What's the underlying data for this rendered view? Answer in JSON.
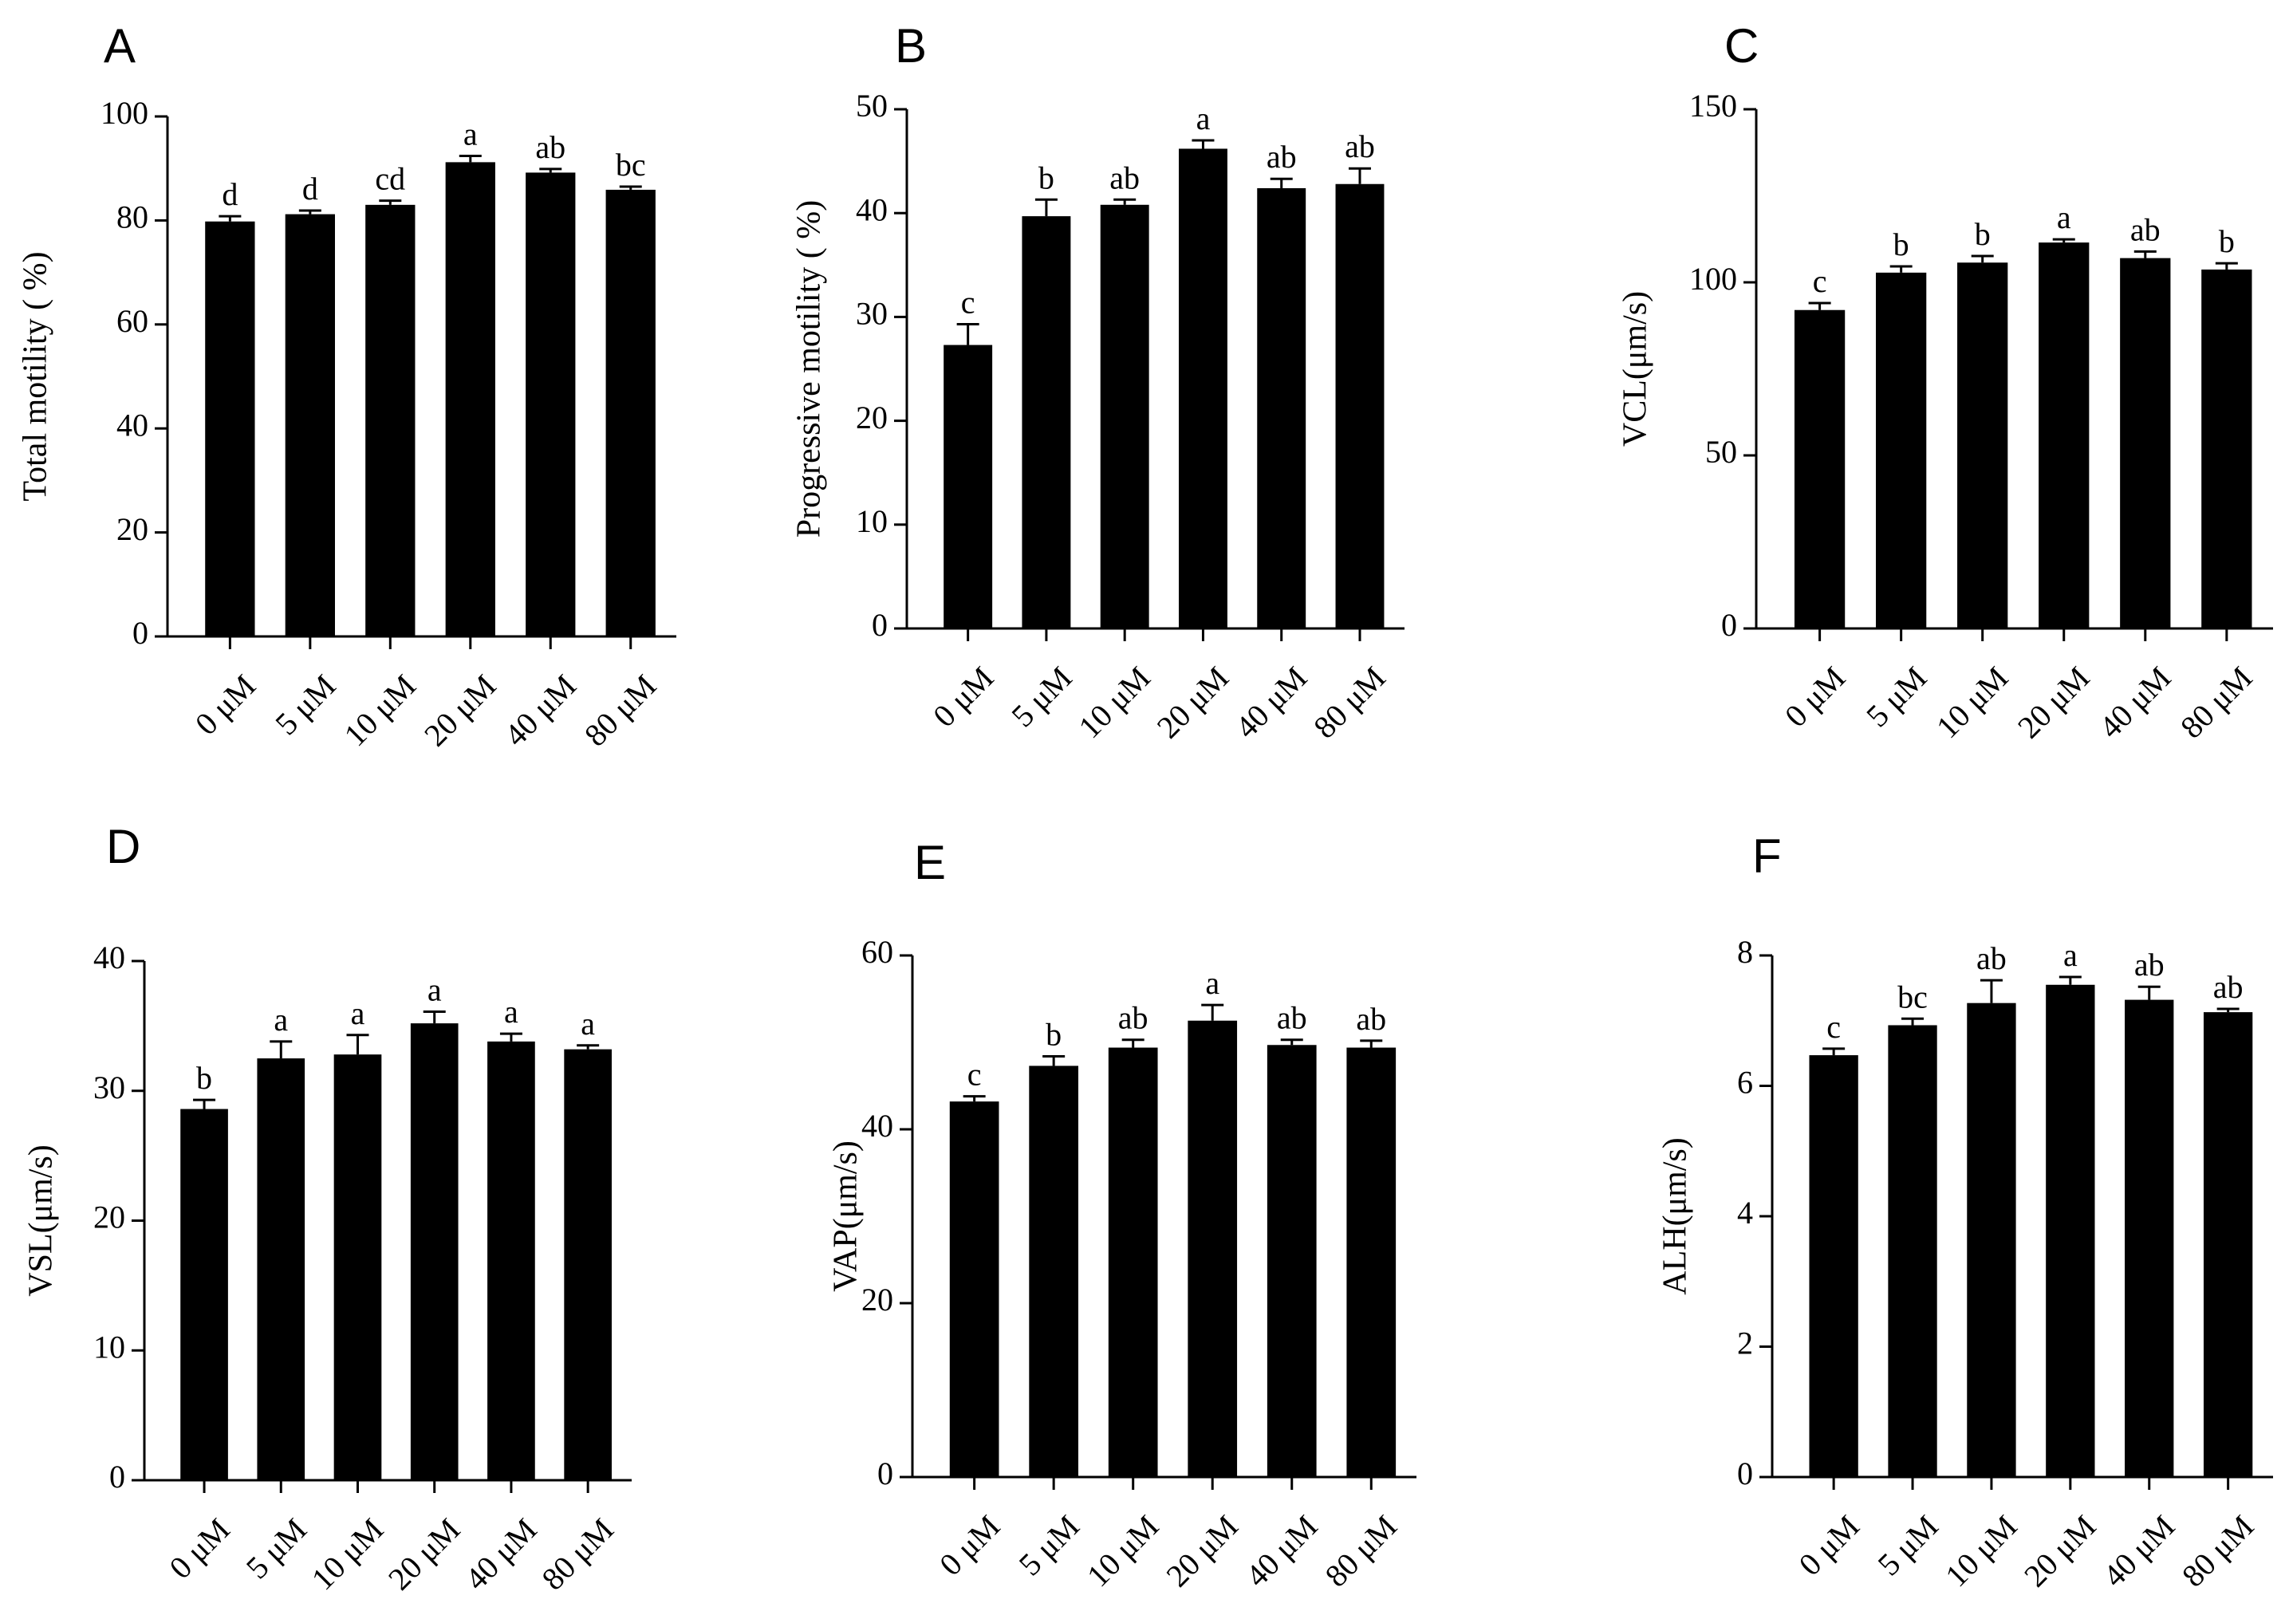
{
  "chart_data": [
    {
      "panel": "A",
      "type": "bar",
      "categories": [
        "0 μM",
        "5 μM",
        "10 μM",
        "20 μM",
        "40 μM",
        "80 μM"
      ],
      "values": [
        79.8,
        81.2,
        83.0,
        91.2,
        89.2,
        85.9
      ],
      "errors": [
        1.0,
        0.7,
        0.8,
        1.2,
        0.7,
        0.6
      ],
      "labels": [
        "d",
        "d",
        "cd",
        "a",
        "ab",
        "bc"
      ],
      "ylabel": "Total motility ( %)",
      "ylim": [
        0,
        100
      ],
      "yticks": [
        0,
        20,
        40,
        60,
        80,
        100
      ]
    },
    {
      "panel": "B",
      "type": "bar",
      "categories": [
        "0 μM",
        "5 μM",
        "10 μM",
        "20 μM",
        "40 μM",
        "80 μM"
      ],
      "values": [
        27.3,
        39.7,
        40.8,
        46.2,
        42.4,
        42.8
      ],
      "errors": [
        2.0,
        1.6,
        0.5,
        0.8,
        0.9,
        1.5
      ],
      "labels": [
        "c",
        "b",
        "ab",
        "a",
        "ab",
        "ab"
      ],
      "ylabel": "Progressive motility ( %)",
      "ylim": [
        0,
        50
      ],
      "yticks": [
        0,
        10,
        20,
        30,
        40,
        50
      ]
    },
    {
      "panel": "C",
      "type": "bar",
      "categories": [
        "0 μM",
        "5 μM",
        "10 μM",
        "20 μM",
        "40 μM",
        "80 μM"
      ],
      "values": [
        92.0,
        102.8,
        105.7,
        111.5,
        107.0,
        103.7
      ],
      "errors": [
        2.0,
        1.8,
        1.9,
        0.9,
        1.9,
        1.8
      ],
      "labels": [
        "c",
        "b",
        "b",
        "a",
        "ab",
        "b"
      ],
      "ylabel": "VCL(μm/s)",
      "ylim": [
        0,
        150
      ],
      "yticks": [
        0,
        50,
        100,
        150
      ]
    },
    {
      "panel": "D",
      "type": "bar",
      "categories": [
        "0 μM",
        "5 μM",
        "10 μM",
        "20 μM",
        "40 μM",
        "80 μM"
      ],
      "values": [
        28.6,
        32.5,
        32.8,
        35.2,
        33.8,
        33.2
      ],
      "errors": [
        0.7,
        1.3,
        1.5,
        0.9,
        0.6,
        0.3
      ],
      "labels": [
        "b",
        "a",
        "a",
        "a",
        "a",
        "a"
      ],
      "ylabel": "VSL(μm/s)",
      "ylim": [
        0,
        40
      ],
      "yticks": [
        0,
        10,
        20,
        30,
        40
      ]
    },
    {
      "panel": "E",
      "type": "bar",
      "categories": [
        "0 μM",
        "5 μM",
        "10 μM",
        "20 μM",
        "40 μM",
        "80 μM"
      ],
      "values": [
        43.2,
        47.3,
        49.4,
        52.5,
        49.7,
        49.4
      ],
      "errors": [
        0.6,
        1.1,
        0.9,
        1.8,
        0.6,
        0.8
      ],
      "labels": [
        "c",
        "b",
        "ab",
        "a",
        "ab",
        "ab"
      ],
      "ylabel": "VAP(μm/s)",
      "ylim": [
        0,
        60
      ],
      "yticks": [
        0,
        20,
        40,
        60
      ]
    },
    {
      "panel": "F",
      "type": "bar",
      "categories": [
        "0 μM",
        "5 μM",
        "10 μM",
        "20 μM",
        "40 μM",
        "80 μM"
      ],
      "values": [
        6.47,
        6.93,
        7.27,
        7.55,
        7.32,
        7.13
      ],
      "errors": [
        0.1,
        0.1,
        0.35,
        0.12,
        0.2,
        0.05
      ],
      "labels": [
        "c",
        "bc",
        "ab",
        "a",
        "ab",
        "ab"
      ],
      "ylabel": "ALH(μm/s)",
      "ylim": [
        0,
        8
      ],
      "yticks": [
        0,
        2,
        4,
        6,
        8
      ]
    }
  ]
}
